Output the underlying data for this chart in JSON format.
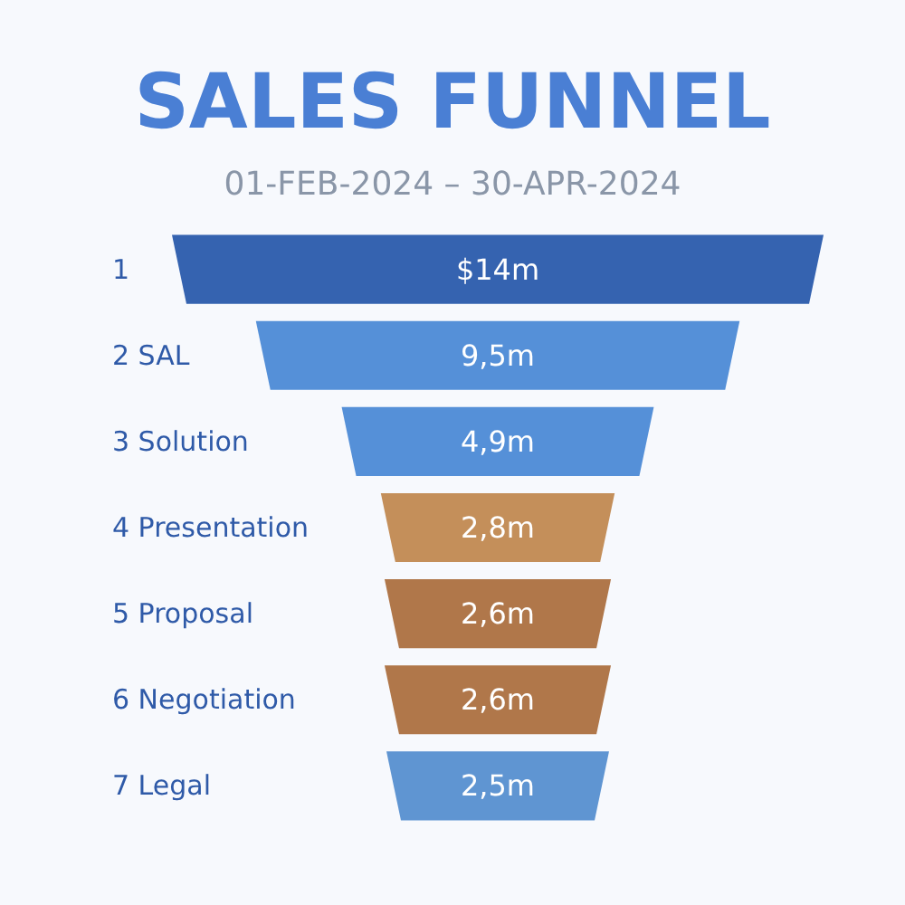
{
  "chart_data": {
    "type": "other",
    "title": "SALES FUNNEL",
    "subtitle": "01-FEB-2024 – 30-APR-2024",
    "categories": [
      "1",
      "2 SAL",
      "3 Solution",
      "4 Presentation",
      "5 Proposal",
      "6 Negotiation",
      "7 Legal"
    ],
    "values": [
      14,
      9.5,
      4.9,
      2.8,
      2.6,
      2.6,
      2.5
    ],
    "value_labels": [
      "$14m",
      "9,5m",
      "4,9m",
      "2,8m",
      "2,6m",
      "2,6m",
      "2,5m"
    ],
    "colors": [
      "#3563b0",
      "#5590d8",
      "#5590d8",
      "#c48f5a",
      "#b0774a",
      "#b0774a",
      "#5f95d2"
    ]
  }
}
